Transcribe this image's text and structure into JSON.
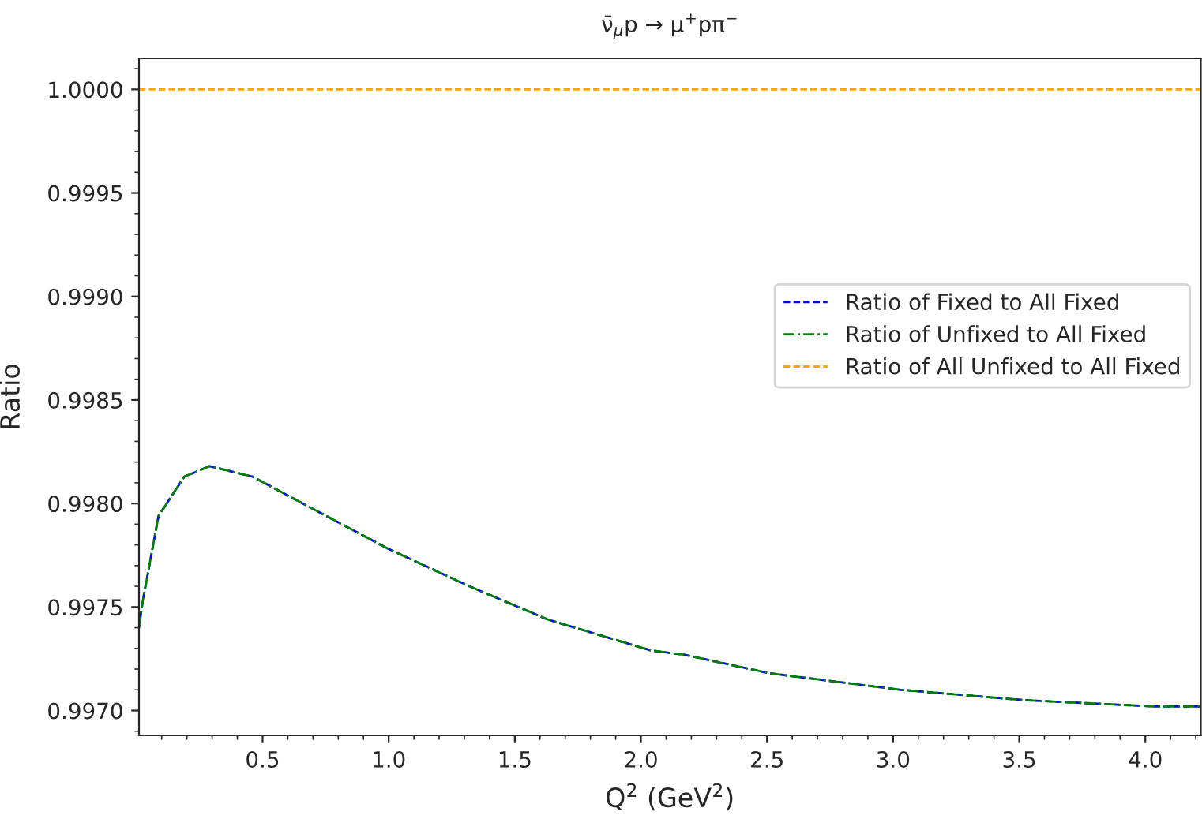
{
  "chart_data": {
    "type": "line",
    "title": "ν̄$_{μ}$p → μ$^{+}$pπ$^{−}$",
    "xlabel": "Q$^{2}$ (GeV$^{2}$)",
    "ylabel": "Ratio",
    "x": [
      0.01,
      0.025,
      0.0875,
      0.19,
      0.29,
      0.46,
      0.69,
      1.0,
      1.32,
      1.63,
      2.04,
      2.17,
      2.51,
      3.03,
      3.52,
      4.03,
      4.22
    ],
    "series": [
      {
        "name": "Ratio of Fixed to All Fixed",
        "color": "#0000ff",
        "line_style": "dashed",
        "values": [
          0.9974,
          0.99753,
          0.99794,
          0.99813,
          0.99818,
          0.99813,
          0.99798,
          0.99778,
          0.9976,
          0.99744,
          0.99729,
          0.99727,
          0.99718,
          0.9971,
          0.99705,
          0.99702,
          0.99702
        ]
      },
      {
        "name": "Ratio of Unfixed to All Fixed",
        "color": "#008000",
        "line_style": "dashdot",
        "values": [
          0.9974,
          0.99753,
          0.99794,
          0.99813,
          0.99818,
          0.99813,
          0.99798,
          0.99778,
          0.9976,
          0.99744,
          0.99729,
          0.99727,
          0.99718,
          0.9971,
          0.99705,
          0.99702,
          0.99702
        ]
      },
      {
        "name": "Ratio of All Unfixed to All Fixed",
        "color": "#ffa500",
        "line_style": "dashed",
        "x": [
          0.01,
          4.22
        ],
        "values": [
          1.0,
          1.0
        ]
      }
    ],
    "xlim": [
      0.01,
      4.22
    ],
    "ylim": [
      0.99688,
      1.00015
    ],
    "xticks": [
      0.5,
      {
        "value": 1,
        "label": "1.0"
      },
      1.5,
      {
        "value": 2,
        "label": "2.0"
      },
      2.5,
      {
        "value": 3,
        "label": "3.0"
      },
      3.5,
      {
        "value": 4,
        "label": "4.0"
      }
    ],
    "yticks": [
      {
        "value": 0.997,
        "label": "0.9970"
      },
      {
        "value": 0.9975,
        "label": "0.9975"
      },
      {
        "value": 0.998,
        "label": "0.9980"
      },
      {
        "value": 0.9985,
        "label": "0.9985"
      },
      {
        "value": 0.999,
        "label": "0.9990"
      },
      {
        "value": 0.9995,
        "label": "0.9995"
      },
      {
        "value": 1.0,
        "label": "1.0000"
      }
    ],
    "grid": false,
    "legend": "center right"
  }
}
